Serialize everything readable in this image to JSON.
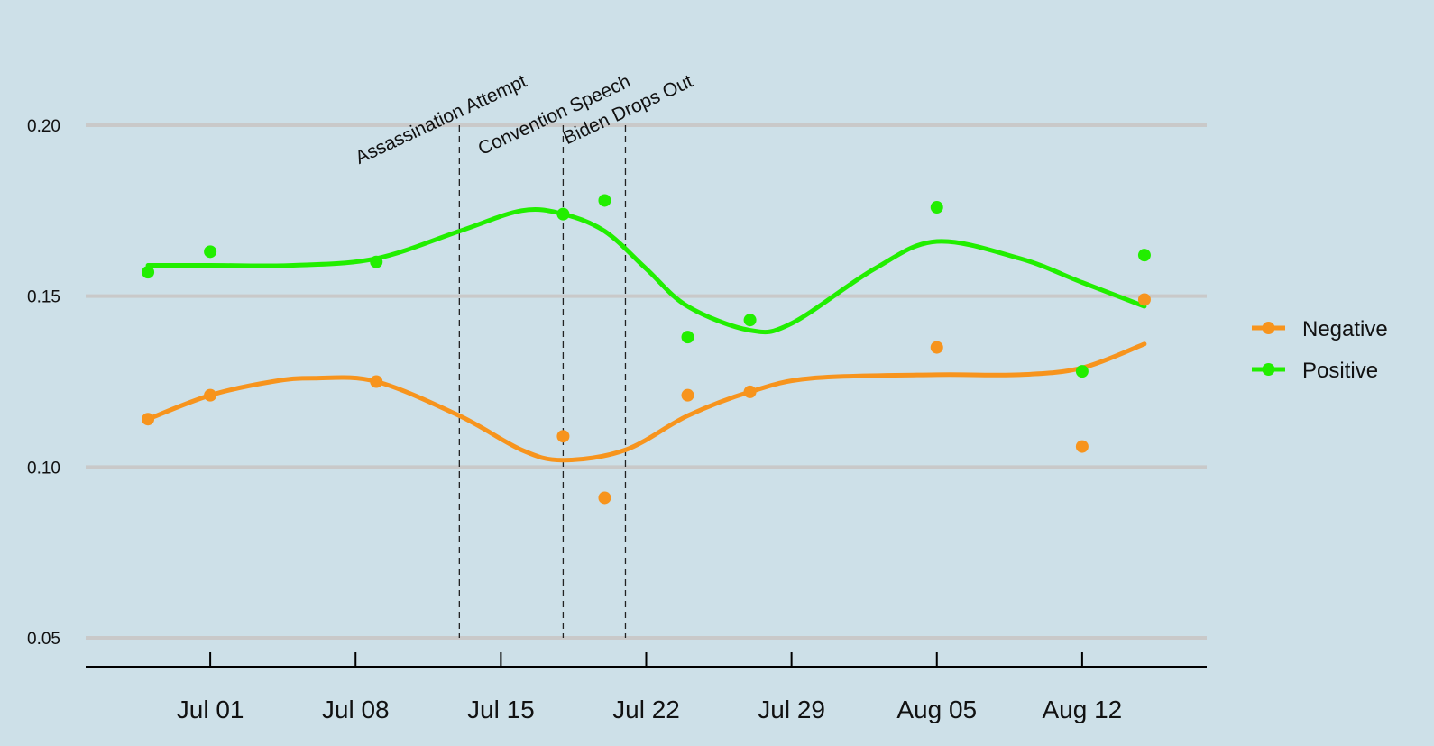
{
  "chart_data": {
    "type": "scatter",
    "title": "",
    "xlabel": "",
    "ylabel": "",
    "ylim": [
      0.05,
      0.2
    ],
    "y_ticks": [
      0.05,
      0.1,
      0.15,
      0.2
    ],
    "y_tick_labels": [
      "0.05",
      "0.10",
      "0.15",
      "0.20"
    ],
    "xlim": [
      "2024-06-25",
      "2024-08-18"
    ],
    "x_ticks": [
      "2024-07-01",
      "2024-07-08",
      "2024-07-15",
      "2024-07-22",
      "2024-07-29",
      "2024-08-05",
      "2024-08-12"
    ],
    "x_tick_labels": [
      "Jul 01",
      "Jul 08",
      "Jul 15",
      "Jul 22",
      "Jul 29",
      "Aug 05",
      "Aug 12"
    ],
    "grid": "horizontal",
    "legend_position": "right",
    "events": [
      {
        "label": "Assassination Attempt",
        "x": "2024-07-13"
      },
      {
        "label": "Convention Speech",
        "x": "2024-07-18"
      },
      {
        "label": "Biden Drops Out",
        "x": "2024-07-21"
      }
    ],
    "series": [
      {
        "name": "Negative",
        "color": "#f7941d",
        "x": [
          "2024-06-28",
          "2024-07-01",
          "2024-07-09",
          "2024-07-18",
          "2024-07-20",
          "2024-07-24",
          "2024-07-27",
          "2024-08-05",
          "2024-08-12",
          "2024-08-15"
        ],
        "y": [
          0.114,
          0.121,
          0.125,
          0.109,
          0.091,
          0.121,
          0.122,
          0.135,
          0.106,
          0.149
        ],
        "smooth_x": [
          "2024-06-28",
          "2024-07-01",
          "2024-07-04",
          "2024-07-06",
          "2024-07-09",
          "2024-07-13",
          "2024-07-16",
          "2024-07-18",
          "2024-07-21",
          "2024-07-24",
          "2024-07-27",
          "2024-07-30",
          "2024-08-05",
          "2024-08-09",
          "2024-08-12",
          "2024-08-15"
        ],
        "smooth_y": [
          0.114,
          0.121,
          0.125,
          0.126,
          0.125,
          0.115,
          0.105,
          0.102,
          0.105,
          0.115,
          0.122,
          0.126,
          0.127,
          0.127,
          0.129,
          0.136
        ]
      },
      {
        "name": "Positive",
        "color": "#22ee00",
        "x": [
          "2024-06-28",
          "2024-07-01",
          "2024-07-09",
          "2024-07-18",
          "2024-07-20",
          "2024-07-24",
          "2024-07-27",
          "2024-08-05",
          "2024-08-12",
          "2024-08-15"
        ],
        "y": [
          0.157,
          0.163,
          0.16,
          0.174,
          0.178,
          0.138,
          0.143,
          0.176,
          0.128,
          0.162
        ],
        "smooth_x": [
          "2024-06-28",
          "2024-07-01",
          "2024-07-05",
          "2024-07-09",
          "2024-07-13",
          "2024-07-16",
          "2024-07-18",
          "2024-07-20",
          "2024-07-22",
          "2024-07-24",
          "2024-07-27",
          "2024-07-29",
          "2024-08-02",
          "2024-08-05",
          "2024-08-09",
          "2024-08-12",
          "2024-08-15"
        ],
        "smooth_y": [
          0.159,
          0.159,
          0.159,
          0.161,
          0.169,
          0.175,
          0.174,
          0.169,
          0.158,
          0.147,
          0.14,
          0.142,
          0.158,
          0.166,
          0.161,
          0.154,
          0.147
        ]
      }
    ]
  }
}
